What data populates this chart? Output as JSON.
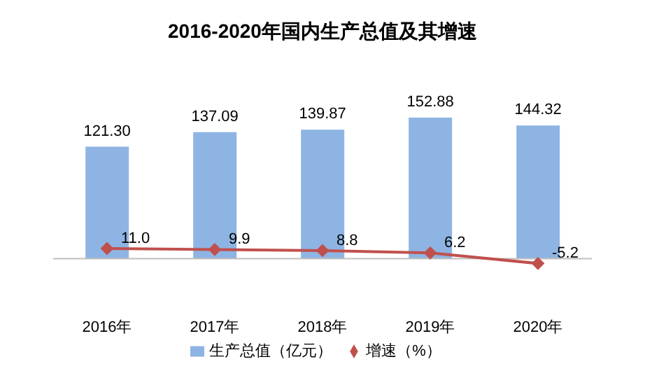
{
  "chart_data": {
    "type": "bar",
    "title": "2016-2020年国内生产总值及其增速",
    "categories": [
      "2016年",
      "2017年",
      "2018年",
      "2019年",
      "2020年"
    ],
    "series": [
      {
        "name": "生产总值（亿元）",
        "color": "#8eb4e3",
        "values": [
          121.3,
          137.09,
          139.87,
          152.88,
          144.32
        ],
        "value_labels": [
          "121.30",
          "137.09",
          "139.87",
          "152.88",
          "144.32"
        ]
      },
      {
        "name": "增速（%）",
        "type": "line",
        "color": "#c0504d",
        "marker": "diamond",
        "values": [
          11.0,
          9.9,
          8.8,
          6.2,
          -5.2
        ],
        "value_labels": [
          "11.0",
          "9.9",
          "8.8",
          "6.2",
          "-5.2"
        ]
      }
    ],
    "legend": "bottom"
  }
}
